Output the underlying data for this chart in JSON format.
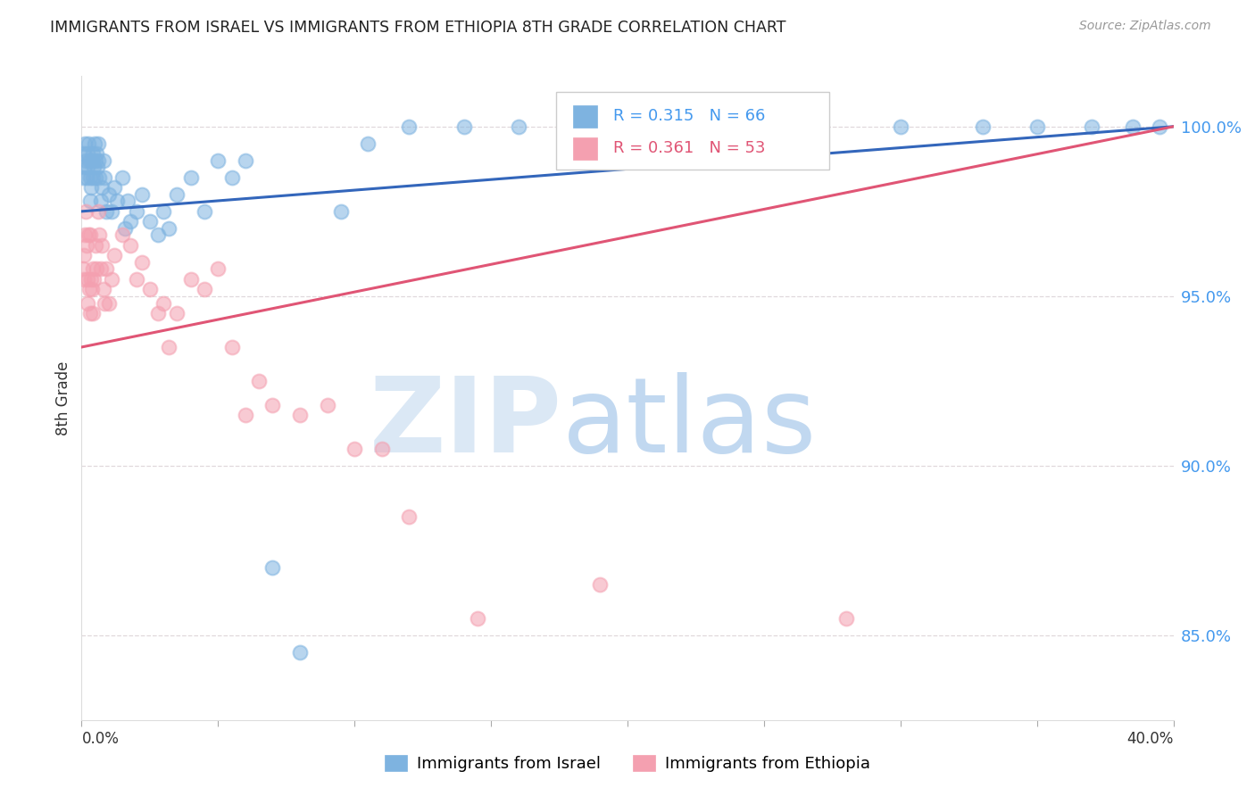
{
  "title": "IMMIGRANTS FROM ISRAEL VS IMMIGRANTS FROM ETHIOPIA 8TH GRADE CORRELATION CHART",
  "source": "Source: ZipAtlas.com",
  "ylabel": "8th Grade",
  "yaxis_ticks": [
    85.0,
    90.0,
    95.0,
    100.0
  ],
  "xlim": [
    0.0,
    40.0
  ],
  "ylim": [
    82.5,
    101.5
  ],
  "legend_r1": "0.315",
  "legend_n1": "66",
  "legend_r2": "0.361",
  "legend_n2": "53",
  "color_israel": "#7EB3E0",
  "color_ethiopia": "#F4A0B0",
  "color_line_israel": "#3366BB",
  "color_line_ethiopia": "#E05575",
  "israel_x": [
    0.05,
    0.08,
    0.1,
    0.12,
    0.15,
    0.18,
    0.2,
    0.22,
    0.25,
    0.28,
    0.3,
    0.32,
    0.35,
    0.38,
    0.4,
    0.42,
    0.45,
    0.48,
    0.5,
    0.52,
    0.55,
    0.58,
    0.6,
    0.62,
    0.65,
    0.7,
    0.75,
    0.8,
    0.85,
    0.9,
    1.0,
    1.1,
    1.2,
    1.3,
    1.5,
    1.6,
    1.7,
    1.8,
    2.0,
    2.2,
    2.5,
    2.8,
    3.0,
    3.2,
    3.5,
    4.0,
    4.5,
    5.0,
    5.5,
    6.0,
    7.0,
    8.0,
    9.5,
    10.5,
    12.0,
    14.0,
    16.0,
    18.0,
    22.0,
    26.0,
    30.0,
    33.0,
    35.0,
    37.0,
    38.5,
    39.5
  ],
  "israel_y": [
    98.5,
    99.2,
    98.8,
    99.5,
    99.0,
    98.5,
    99.2,
    98.8,
    99.5,
    99.0,
    98.5,
    97.8,
    98.2,
    99.0,
    98.5,
    99.2,
    98.8,
    99.5,
    99.0,
    98.5,
    99.2,
    98.8,
    99.5,
    99.0,
    98.5,
    97.8,
    98.2,
    99.0,
    98.5,
    97.5,
    98.0,
    97.5,
    98.2,
    97.8,
    98.5,
    97.0,
    97.8,
    97.2,
    97.5,
    98.0,
    97.2,
    96.8,
    97.5,
    97.0,
    98.0,
    98.5,
    97.5,
    99.0,
    98.5,
    99.0,
    87.0,
    84.5,
    97.5,
    99.5,
    100.0,
    100.0,
    100.0,
    100.0,
    100.0,
    100.0,
    100.0,
    100.0,
    100.0,
    100.0,
    100.0,
    100.0
  ],
  "ethiopia_x": [
    0.05,
    0.08,
    0.1,
    0.12,
    0.15,
    0.18,
    0.2,
    0.22,
    0.25,
    0.28,
    0.3,
    0.32,
    0.35,
    0.38,
    0.4,
    0.42,
    0.45,
    0.5,
    0.55,
    0.6,
    0.65,
    0.7,
    0.75,
    0.8,
    0.85,
    0.9,
    1.0,
    1.1,
    1.2,
    1.5,
    1.8,
    2.0,
    2.2,
    2.5,
    2.8,
    3.0,
    3.2,
    3.5,
    4.0,
    4.5,
    5.0,
    5.5,
    6.0,
    6.5,
    7.0,
    8.0,
    9.0,
    10.0,
    11.0,
    12.0,
    14.5,
    19.0,
    28.0
  ],
  "ethiopia_y": [
    95.8,
    96.2,
    95.5,
    96.8,
    97.5,
    96.5,
    94.8,
    95.5,
    96.8,
    95.2,
    94.5,
    96.8,
    95.5,
    95.2,
    94.5,
    95.8,
    95.5,
    96.5,
    95.8,
    97.5,
    96.8,
    95.8,
    96.5,
    95.2,
    94.8,
    95.8,
    94.8,
    95.5,
    96.2,
    96.8,
    96.5,
    95.5,
    96.0,
    95.2,
    94.5,
    94.8,
    93.5,
    94.5,
    95.5,
    95.2,
    95.8,
    93.5,
    91.5,
    92.5,
    91.8,
    91.5,
    91.8,
    90.5,
    90.5,
    88.5,
    85.5,
    86.5,
    85.5
  ]
}
